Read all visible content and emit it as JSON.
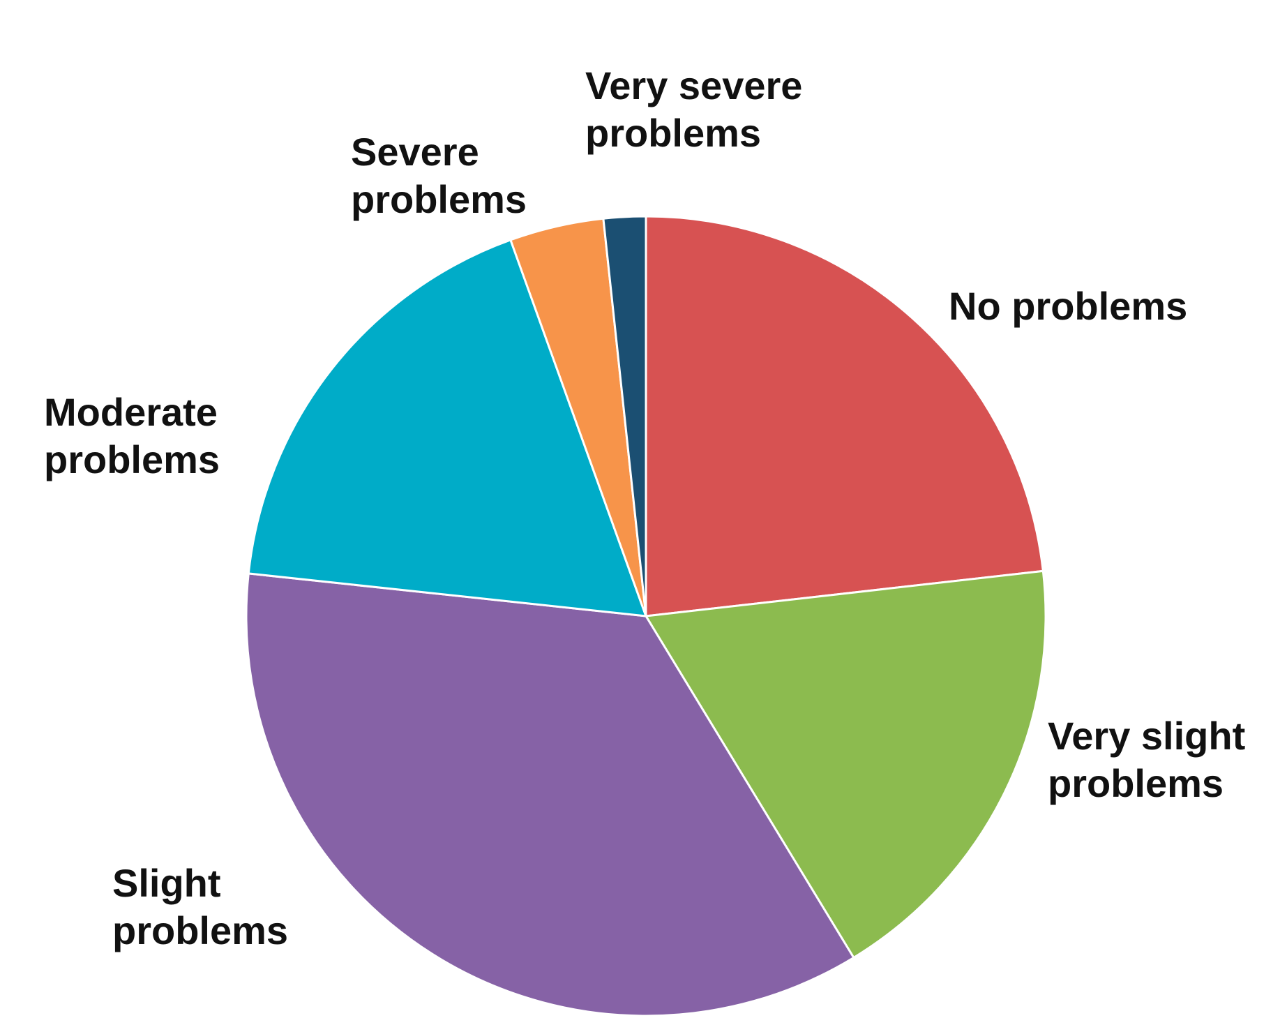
{
  "chart_data": {
    "type": "pie",
    "categories": [
      "No problems",
      "Very slight problems",
      "Slight problems",
      "Moderate problems",
      "Severe problems",
      "Very severe problems"
    ],
    "values": [
      23.2,
      18.1,
      35.4,
      17.8,
      3.8,
      1.7
    ],
    "colors": [
      "#d75252",
      "#8cbb4f",
      "#8662a6",
      "#00acc8",
      "#f7944a",
      "#1b4f72"
    ]
  }
}
